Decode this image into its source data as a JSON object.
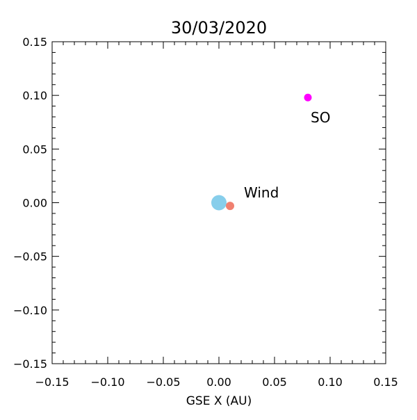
{
  "chart_data": {
    "type": "scatter",
    "title": "30/03/2020",
    "xlabel": "GSE X (AU)",
    "ylabel": "",
    "xlim": [
      -0.15,
      0.15
    ],
    "ylim": [
      -0.15,
      0.15
    ],
    "x_ticks": [
      "−0.15",
      "−0.10",
      "−0.05",
      "0.00",
      "0.05",
      "0.10",
      "0.15"
    ],
    "y_ticks": [
      "−0.15",
      "−0.10",
      "−0.05",
      "0.00",
      "0.05",
      "0.10",
      "0.15"
    ],
    "grid": false,
    "points": [
      {
        "label": "",
        "x": 0.0,
        "y": 0.0,
        "color": "#87ceeb"
      },
      {
        "label": "",
        "x": 0.01,
        "y": -0.003,
        "color": "#f08070"
      },
      {
        "label": "Wind",
        "x": 0.01,
        "y": -0.003,
        "color": "#f08070"
      },
      {
        "label": "SO",
        "x": 0.08,
        "y": 0.098,
        "color": "#ff00ff"
      }
    ],
    "annotations": [
      {
        "text": "Wind",
        "x": 0.02,
        "y": 0.005
      },
      {
        "text": "SO",
        "x": 0.08,
        "y": 0.075
      }
    ]
  }
}
